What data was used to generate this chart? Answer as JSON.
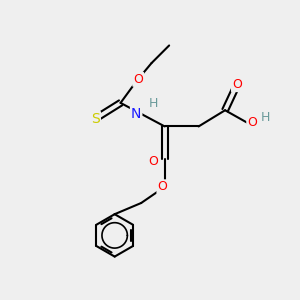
{
  "background_color": "#efefef",
  "bond_color": "#000000",
  "atom_colors": {
    "O": "#ff0000",
    "N": "#1a1aff",
    "S": "#cccc00",
    "H": "#6a9a9a",
    "C": "#000000"
  },
  "figsize": [
    3.0,
    3.0
  ],
  "dpi": 100
}
